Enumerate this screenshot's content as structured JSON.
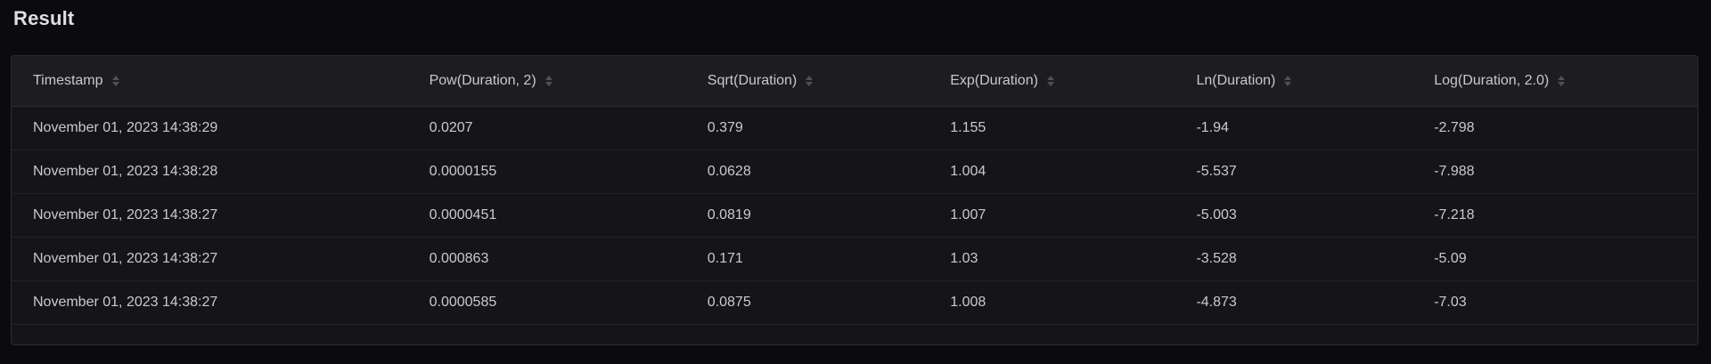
{
  "page": {
    "title": "Result"
  },
  "theme": {
    "page_background": "#0b0b0d",
    "card_background": "#151517",
    "header_background": "#1d1d1f",
    "card_border": "#2c2c30",
    "row_separator": "#232327",
    "text_primary": "#dfe0e2",
    "text_table": "#c9cacc",
    "sort_icon": "#515154"
  },
  "table": {
    "columns": [
      {
        "label": "Timestamp",
        "sortable": true
      },
      {
        "label": "Pow(Duration, 2)",
        "sortable": true
      },
      {
        "label": "Sqrt(Duration)",
        "sortable": true
      },
      {
        "label": "Exp(Duration)",
        "sortable": true
      },
      {
        "label": "Ln(Duration)",
        "sortable": true
      },
      {
        "label": "Log(Duration, 2.0)",
        "sortable": true
      }
    ],
    "rows": [
      [
        "November 01, 2023 14:38:29",
        "0.0207",
        "0.379",
        "1.155",
        "-1.94",
        "-2.798"
      ],
      [
        "November 01, 2023 14:38:28",
        "0.0000155",
        "0.0628",
        "1.004",
        "-5.537",
        "-7.988"
      ],
      [
        "November 01, 2023 14:38:27",
        "0.0000451",
        "0.0819",
        "1.007",
        "-5.003",
        "-7.218"
      ],
      [
        "November 01, 2023 14:38:27",
        "0.000863",
        "0.171",
        "1.03",
        "-3.528",
        "-5.09"
      ],
      [
        "November 01, 2023 14:38:27",
        "0.0000585",
        "0.0875",
        "1.008",
        "-4.873",
        "-7.03"
      ]
    ]
  }
}
